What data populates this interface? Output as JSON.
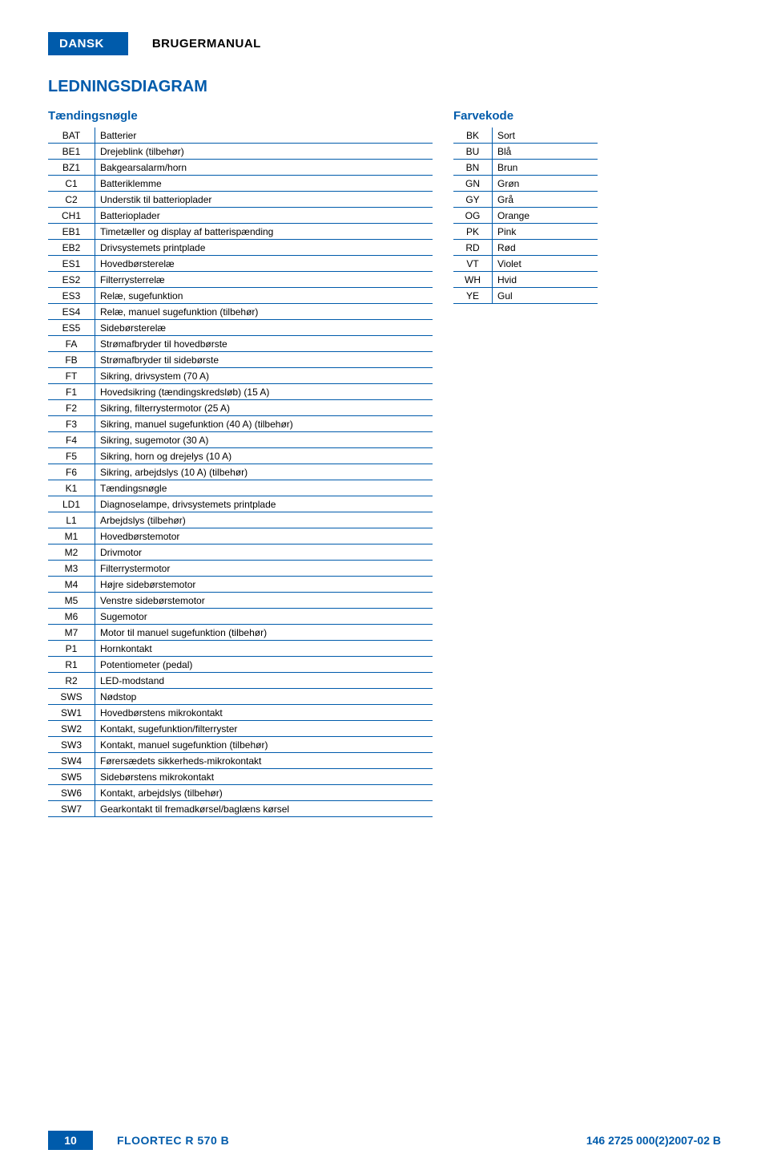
{
  "header": {
    "dansk": "DANSK",
    "brugermanual": "BRUGERMANUAL"
  },
  "section_title": "LEDNINGSDIAGRAM",
  "ignition_key": {
    "title": "Tændingsnøgle",
    "rows": [
      {
        "code": "BAT",
        "label": "Batterier"
      },
      {
        "code": "BE1",
        "label": "Drejeblink (tilbehør)"
      },
      {
        "code": "BZ1",
        "label": "Bakgearsalarm/horn"
      },
      {
        "code": "C1",
        "label": "Batteriklemme"
      },
      {
        "code": "C2",
        "label": "Understik til batterioplader"
      },
      {
        "code": "CH1",
        "label": "Batterioplader"
      },
      {
        "code": "EB1",
        "label": "Timetæller og display af batterispænding"
      },
      {
        "code": "EB2",
        "label": "Drivsystemets printplade"
      },
      {
        "code": "ES1",
        "label": "Hovedbørsterelæ"
      },
      {
        "code": "ES2",
        "label": "Filterrysterrelæ"
      },
      {
        "code": "ES3",
        "label": "Relæ, sugefunktion"
      },
      {
        "code": "ES4",
        "label": "Relæ, manuel sugefunktion (tilbehør)"
      },
      {
        "code": "ES5",
        "label": "Sidebørsterelæ"
      },
      {
        "code": "FA",
        "label": "Strømafbryder til hovedbørste"
      },
      {
        "code": "FB",
        "label": "Strømafbryder til sidebørste"
      },
      {
        "code": "FT",
        "label": "Sikring, drivsystem (70 A)"
      },
      {
        "code": "F1",
        "label": "Hovedsikring (tændingskredsløb) (15 A)"
      },
      {
        "code": "F2",
        "label": "Sikring, filterrystermotor (25 A)"
      },
      {
        "code": "F3",
        "label": "Sikring, manuel sugefunktion (40 A) (tilbehør)"
      },
      {
        "code": "F4",
        "label": "Sikring, sugemotor (30 A)"
      },
      {
        "code": "F5",
        "label": "Sikring, horn og drejelys (10 A)"
      },
      {
        "code": "F6",
        "label": "Sikring, arbejdslys (10 A) (tilbehør)"
      },
      {
        "code": "K1",
        "label": "Tændingsnøgle"
      },
      {
        "code": "LD1",
        "label": "Diagnoselampe, drivsystemets printplade"
      },
      {
        "code": "L1",
        "label": "Arbejdslys (tilbehør)"
      },
      {
        "code": "M1",
        "label": "Hovedbørstemotor"
      },
      {
        "code": "M2",
        "label": "Drivmotor"
      },
      {
        "code": "M3",
        "label": "Filterrystermotor"
      },
      {
        "code": "M4",
        "label": "Højre sidebørstemotor"
      },
      {
        "code": "M5",
        "label": "Venstre sidebørstemotor"
      },
      {
        "code": "M6",
        "label": "Sugemotor"
      },
      {
        "code": "M7",
        "label": "Motor til manuel sugefunktion (tilbehør)"
      },
      {
        "code": "P1",
        "label": "Hornkontakt"
      },
      {
        "code": "R1",
        "label": "Potentiometer (pedal)"
      },
      {
        "code": "R2",
        "label": "LED-modstand"
      },
      {
        "code": "SWS",
        "label": "Nødstop"
      },
      {
        "code": "SW1",
        "label": "Hovedbørstens mikrokontakt"
      },
      {
        "code": "SW2",
        "label": "Kontakt, sugefunktion/filterryster"
      },
      {
        "code": "SW3",
        "label": "Kontakt, manuel sugefunktion (tilbehør)"
      },
      {
        "code": "SW4",
        "label": "Førersædets sikkerheds-mikrokontakt"
      },
      {
        "code": "SW5",
        "label": "Sidebørstens mikrokontakt"
      },
      {
        "code": "SW6",
        "label": "Kontakt, arbejdslys (tilbehør)"
      },
      {
        "code": "SW7",
        "label": "Gearkontakt til fremadkørsel/baglæns kørsel"
      }
    ]
  },
  "color_code": {
    "title": "Farvekode",
    "rows": [
      {
        "code": "BK",
        "label": "Sort"
      },
      {
        "code": "BU",
        "label": "Blå"
      },
      {
        "code": "BN",
        "label": "Brun"
      },
      {
        "code": "GN",
        "label": "Grøn"
      },
      {
        "code": "GY",
        "label": "Grå"
      },
      {
        "code": "OG",
        "label": "Orange"
      },
      {
        "code": "PK",
        "label": "Pink"
      },
      {
        "code": "RD",
        "label": "Rød"
      },
      {
        "code": "VT",
        "label": "Violet"
      },
      {
        "code": "WH",
        "label": "Hvid"
      },
      {
        "code": "YE",
        "label": "Gul"
      }
    ]
  },
  "footer": {
    "page": "10",
    "title": "FLOORTEC R 570 B",
    "code": "146 2725 000(2)2007-02 B"
  },
  "style": {
    "brand_blue": "#005bab",
    "text_black": "#000000",
    "background": "#ffffff",
    "body_fontsize": 12,
    "title_fontsize": 20,
    "subtitle_fontsize": 15,
    "footer_fontsize": 14
  }
}
